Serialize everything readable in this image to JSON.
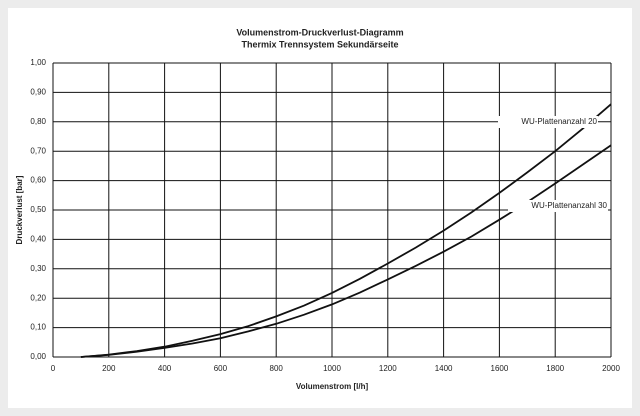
{
  "chart_data": {
    "type": "line",
    "title": "Volumenstrom-Druckverlust-Diagramm",
    "subtitle": "Thermix Trennsystem Sekundärseite",
    "x_label": "Volumenstrom [l/h]",
    "y_label": "Druckverlust [bar]",
    "x": [
      100,
      200,
      300,
      400,
      500,
      600,
      700,
      800,
      900,
      1000,
      1100,
      1200,
      1300,
      1400,
      1500,
      1600,
      1700,
      1800,
      1900,
      2000
    ],
    "series": [
      {
        "name": "WU-Plattenanzahl 20",
        "color": "#111111",
        "values": [
          0,
          0.008,
          0.02,
          0.035,
          0.055,
          0.078,
          0.105,
          0.138,
          0.175,
          0.218,
          0.266,
          0.318,
          0.372,
          0.43,
          0.492,
          0.558,
          0.628,
          0.7,
          0.778,
          0.86
        ]
      },
      {
        "name": "WU-Plattenanzahl 30",
        "color": "#111111",
        "values": [
          0,
          0.007,
          0.018,
          0.031,
          0.046,
          0.064,
          0.087,
          0.113,
          0.144,
          0.179,
          0.219,
          0.264,
          0.31,
          0.358,
          0.41,
          0.467,
          0.527,
          0.59,
          0.655,
          0.72
        ]
      }
    ],
    "xlim": [
      0,
      2000
    ],
    "xticks": [
      0,
      200,
      400,
      600,
      800,
      1000,
      1200,
      1400,
      1600,
      1800,
      2000
    ],
    "ylim": [
      0,
      1
    ],
    "yticks": [
      {
        "value": 0,
        "label": "0,00"
      },
      {
        "value": 0.1,
        "label": "0,10"
      },
      {
        "value": 0.2,
        "label": "0,20"
      },
      {
        "value": 0.3,
        "label": "0,30"
      },
      {
        "value": 0.4,
        "label": "0,40"
      },
      {
        "value": 0.5,
        "label": "0,50"
      },
      {
        "value": 0.6,
        "label": "0,60"
      },
      {
        "value": 0.7,
        "label": "0,70"
      },
      {
        "value": 0.8,
        "label": "0,80"
      },
      {
        "value": 0.9,
        "label": "0,90"
      },
      {
        "value": 1,
        "label": "1,00"
      }
    ],
    "grid": true
  }
}
